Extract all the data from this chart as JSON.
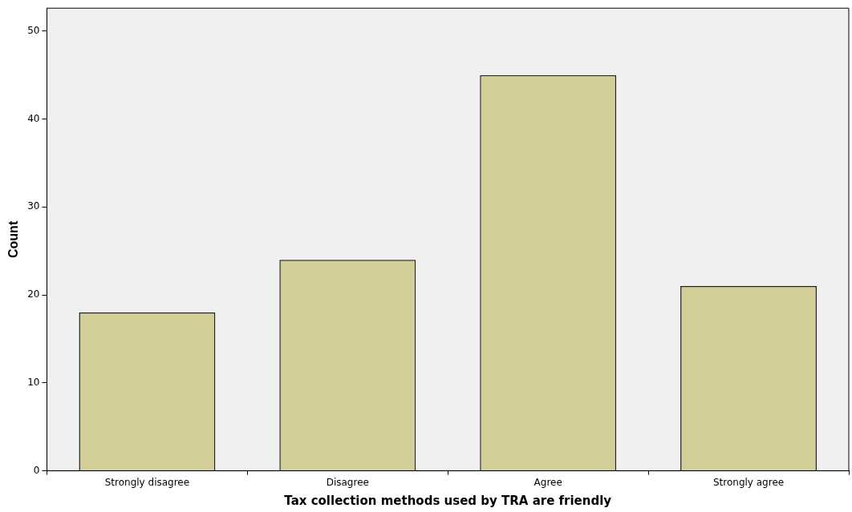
{
  "chart_data": {
    "type": "bar",
    "xlabel": "Tax collection methods used by TRA are friendly",
    "ylabel": "Count",
    "categories": [
      "Strongly disagree",
      "Disagree",
      "Agree",
      "Strongly agree"
    ],
    "values": [
      18,
      24,
      45,
      21
    ],
    "color": "#d3ce97",
    "ylim": [
      0,
      52.6
    ],
    "yticks": [
      0,
      10,
      20,
      30,
      40,
      50
    ],
    "grid": false,
    "legend": false
  }
}
